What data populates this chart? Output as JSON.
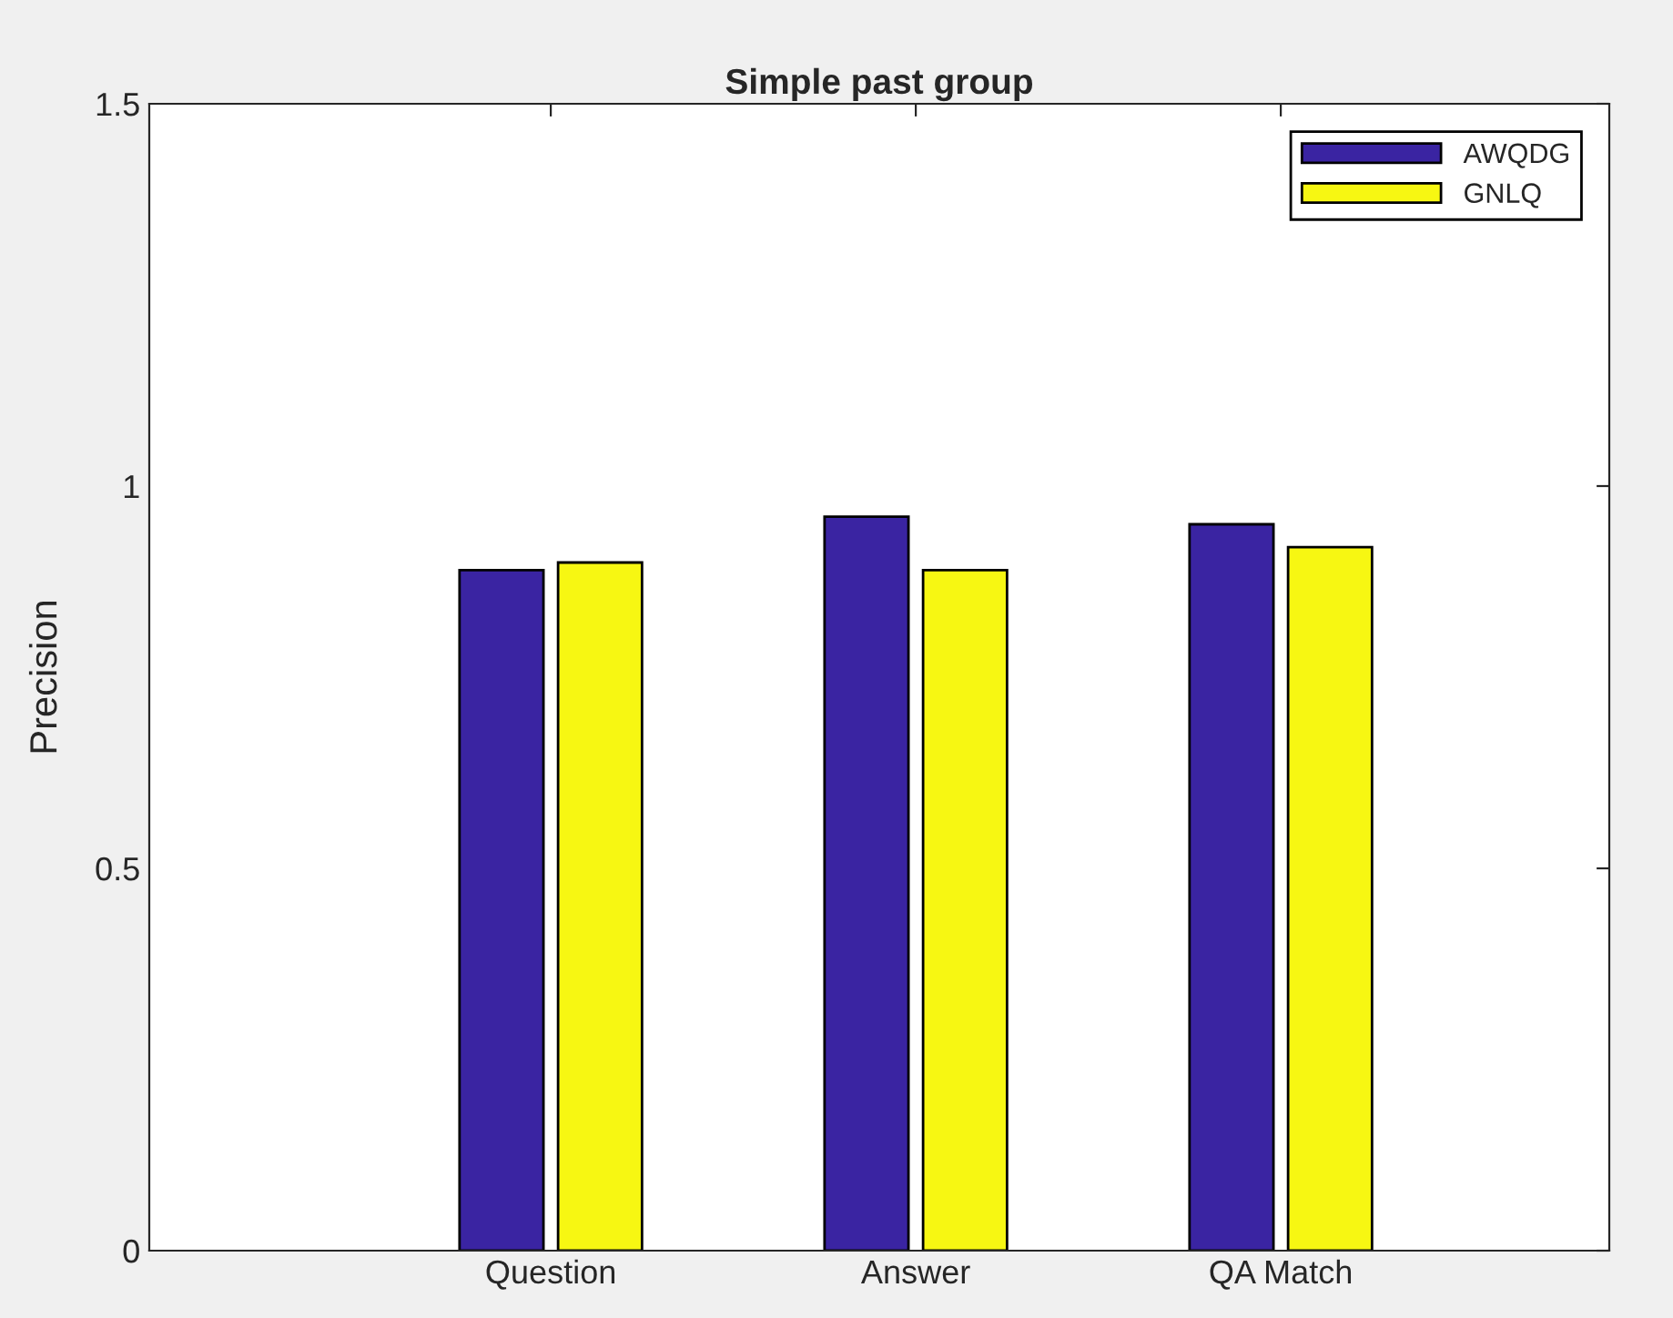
{
  "chart_data": {
    "type": "bar",
    "title": "Simple past group",
    "ylabel": "Precision",
    "categories": [
      "Question",
      "Answer",
      "QA Match"
    ],
    "series": [
      {
        "name": "AWQDG",
        "color": "#3a24a2",
        "values": [
          0.89,
          0.96,
          0.95
        ]
      },
      {
        "name": "GNLQ",
        "color": "#f7f712",
        "values": [
          0.9,
          0.89,
          0.92
        ]
      }
    ],
    "ylim": [
      0,
      1.5
    ],
    "yticks": [
      0,
      0.5,
      1,
      1.5
    ],
    "grid": false,
    "legend": "top right"
  }
}
